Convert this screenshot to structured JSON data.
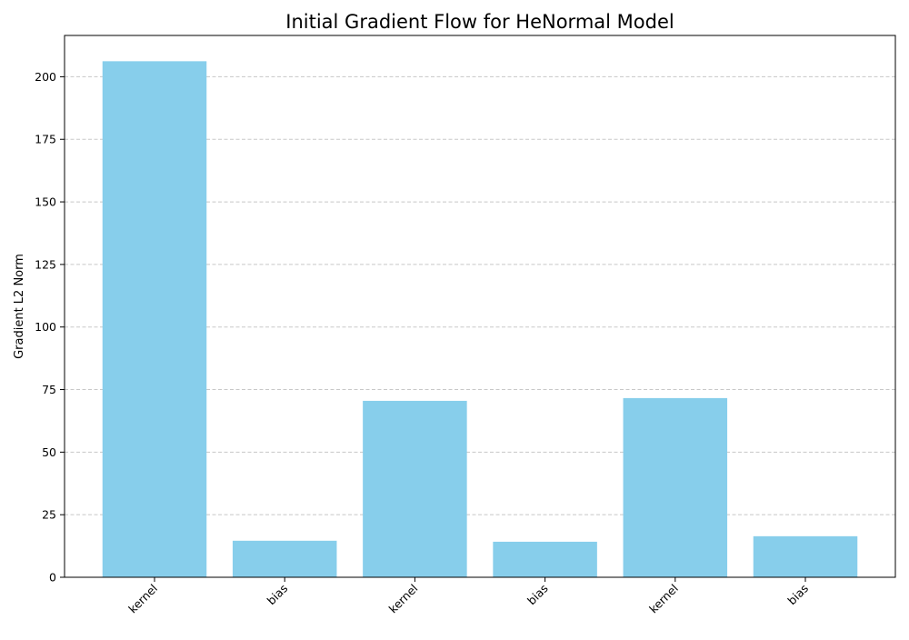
{
  "chart_data": {
    "type": "bar",
    "title": "Initial Gradient Flow for HeNormal Model",
    "xlabel": "",
    "ylabel": "Gradient L2 Norm",
    "categories": [
      "kernel",
      "bias",
      "kernel",
      "bias",
      "kernel",
      "bias"
    ],
    "values": [
      206.2,
      14.6,
      70.5,
      14.2,
      71.6,
      16.4
    ],
    "ylim": [
      0,
      216.5
    ],
    "yticks": [
      0,
      25,
      50,
      75,
      100,
      125,
      150,
      175,
      200
    ],
    "grid": {
      "axis": "y",
      "style": "dashed"
    },
    "bar_color": "#87CEEB",
    "grid_color": "#c8c8c8",
    "xtick_rotation": "45 degrees"
  }
}
